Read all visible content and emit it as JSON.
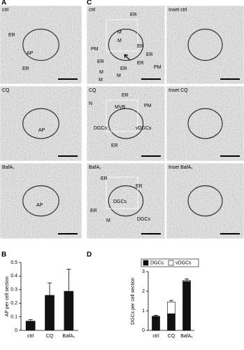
{
  "panel_labels": [
    "A",
    "B",
    "C",
    "D"
  ],
  "panel_a": [
    {
      "title": "ctrl",
      "labels": [
        "ER",
        "AP",
        "ER"
      ]
    },
    {
      "title": "CQ",
      "labels": [
        "AP"
      ]
    },
    {
      "title": "BafA₁",
      "labels": [
        "AP"
      ]
    }
  ],
  "panel_c": [
    {
      "title": "ctrl",
      "labels": [
        "ER",
        "PM",
        "M",
        "M",
        "ER",
        "ER",
        "ER",
        "ER",
        "ER",
        "M",
        "M",
        "PM",
        "M"
      ]
    },
    {
      "title": "Inset ctrl"
    },
    {
      "title": "CQ",
      "labels": [
        "N",
        "ER",
        "MVB",
        "PM",
        "DGCs",
        "vDGCs",
        "ER"
      ]
    },
    {
      "title": "Inset CQ"
    },
    {
      "title": "BafA₁",
      "labels": [
        "ER",
        "ER",
        "DGCs",
        "ER",
        "M",
        "DGCs"
      ]
    },
    {
      "title": "Inset BafA₁"
    }
  ],
  "chart_data": [
    {
      "type": "bar",
      "ylabel": "AP per cell section",
      "categories": [
        "ctrl",
        "CQ",
        "BafA₁"
      ],
      "values": [
        0.07,
        0.26,
        0.29
      ],
      "errors": [
        0.01,
        0.09,
        0.16
      ],
      "color": "#111111",
      "ylim": [
        0,
        0.5
      ],
      "yticks": [
        0,
        0.1,
        0.2,
        0.3,
        0.4,
        0.5
      ]
    },
    {
      "type": "stacked_bar",
      "ylabel": "DGCs per cell section",
      "categories": [
        "ctrl",
        "CQ",
        "BafA₁"
      ],
      "series": [
        {
          "name": "DGCs",
          "color": "#111111",
          "values": [
            0.7,
            0.85,
            2.5
          ]
        },
        {
          "name": "vDGCs",
          "color": "#ffffff",
          "values": [
            0.02,
            0.6,
            0.05
          ],
          "errors": [
            0.05,
            0.08,
            0.08
          ]
        }
      ],
      "ylim": [
        0,
        3
      ],
      "yticks": [
        0,
        1,
        2,
        3
      ],
      "legend": "top"
    }
  ]
}
